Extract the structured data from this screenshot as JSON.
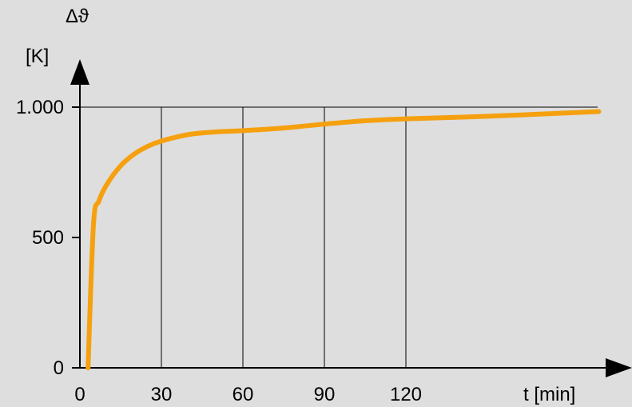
{
  "chart_data": {
    "type": "line",
    "title": "",
    "ylabel_symbol": "Δϑ",
    "ylabel_unit": "[K]",
    "xlabel": "t [min]",
    "xlim": [
      0,
      200
    ],
    "ylim": [
      0,
      1000
    ],
    "x_ticks": [
      {
        "value": 0,
        "label": "0"
      },
      {
        "value": 30,
        "label": "30"
      },
      {
        "value": 60,
        "label": "60"
      },
      {
        "value": 90,
        "label": "90"
      },
      {
        "value": 120,
        "label": "120"
      }
    ],
    "y_ticks": [
      {
        "value": 0,
        "label": "0"
      },
      {
        "value": 500,
        "label": "500"
      },
      {
        "value": 1000,
        "label": "1.000"
      }
    ],
    "reference_lines": {
      "horizontal_at_y": 1000,
      "vertical_at_x": [
        30,
        60,
        90,
        120
      ]
    },
    "grid": false,
    "series": [
      {
        "color": "#f5a00f",
        "x": [
          3,
          5,
          7,
          10,
          15,
          20,
          25,
          30,
          40,
          50,
          60,
          75,
          90,
          105,
          120,
          150,
          180,
          191
        ],
        "y": [
          0,
          550,
          640,
          705,
          775,
          820,
          850,
          870,
          895,
          905,
          910,
          920,
          935,
          948,
          955,
          965,
          978,
          983
        ]
      }
    ]
  }
}
